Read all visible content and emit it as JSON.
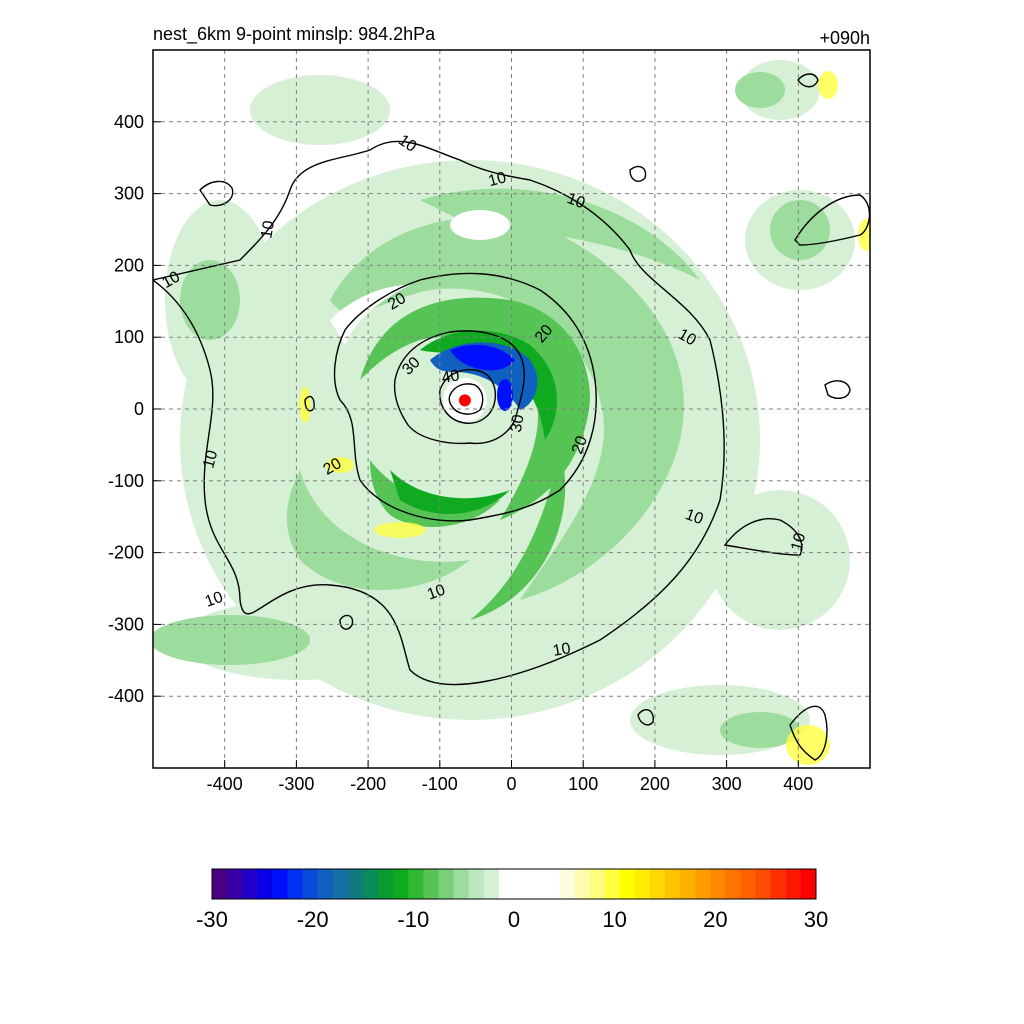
{
  "chart_data": {
    "type": "heatmap",
    "title_left": "nest_6km  9-point minslp: 984.2hPa",
    "title_right": "+090h",
    "xlim": [
      -500,
      500
    ],
    "ylim": [
      -500,
      500
    ],
    "x_ticks": [
      -400,
      -300,
      -200,
      -100,
      0,
      100,
      200,
      300,
      400
    ],
    "y_ticks": [
      400,
      300,
      200,
      100,
      0,
      -100,
      -200,
      -300,
      -400
    ],
    "grid": true,
    "center_marker": {
      "x": -65,
      "y": 12,
      "color": "#ff0000"
    },
    "contour_levels": [
      10,
      20,
      30,
      40
    ],
    "contour_labels": [
      {
        "text": "10",
        "x": -145,
        "y": 370,
        "rot": 35
      },
      {
        "text": "10",
        "x": -20,
        "y": 320,
        "rot": -15
      },
      {
        "text": "10",
        "x": 90,
        "y": 290,
        "rot": 20
      },
      {
        "text": "10",
        "x": -340,
        "y": 250,
        "rot": -80
      },
      {
        "text": "10",
        "x": -475,
        "y": 180,
        "rot": -30
      },
      {
        "text": "20",
        "x": -160,
        "y": 150,
        "rot": -30
      },
      {
        "text": "20",
        "x": 45,
        "y": 105,
        "rot": -50
      },
      {
        "text": "10",
        "x": 245,
        "y": 100,
        "rot": 30
      },
      {
        "text": "30",
        "x": -140,
        "y": 60,
        "rot": -45
      },
      {
        "text": "40",
        "x": -85,
        "y": 45,
        "rot": -10
      },
      {
        "text": "30",
        "x": 8,
        "y": -20,
        "rot": -80
      },
      {
        "text": "20",
        "x": 95,
        "y": -50,
        "rot": -70
      },
      {
        "text": "10",
        "x": -420,
        "y": -70,
        "rot": -75
      },
      {
        "text": "20",
        "x": -250,
        "y": -80,
        "rot": -30
      },
      {
        "text": "10",
        "x": 255,
        "y": -150,
        "rot": 20
      },
      {
        "text": "10",
        "x": 400,
        "y": -185,
        "rot": -75
      },
      {
        "text": "10",
        "x": -105,
        "y": -255,
        "rot": -20
      },
      {
        "text": "10",
        "x": -415,
        "y": -265,
        "rot": -20
      },
      {
        "text": "10",
        "x": 70,
        "y": -335,
        "rot": -10
      }
    ],
    "colorbar": {
      "min": -30,
      "max": 30,
      "tick_values": [
        -30,
        -20,
        -10,
        0,
        10,
        20,
        30
      ],
      "tick_labels": [
        "-30",
        "-20",
        "-10",
        "0",
        "10",
        "20",
        "30"
      ],
      "colors": [
        "#4b0082",
        "#3a00a8",
        "#2300c8",
        "#0a00e8",
        "#0010ff",
        "#0030f0",
        "#0a4ad8",
        "#1060c0",
        "#1570a8",
        "#107a80",
        "#0b8a5a",
        "#0a9a30",
        "#10aa20",
        "#30b830",
        "#55c455",
        "#7ad07a",
        "#9cdc9c",
        "#bce6bc",
        "#d6f0d6",
        "#ffffff",
        "#ffffff",
        "#ffffff",
        "#ffffff",
        "#fdfde0",
        "#fdfdb0",
        "#fdfd80",
        "#ffff40",
        "#ffff00",
        "#ffec00",
        "#ffd800",
        "#ffc400",
        "#ffb000",
        "#ff9c00",
        "#ff8800",
        "#ff7400",
        "#ff6000",
        "#ff4c00",
        "#ff3000",
        "#ff1800",
        "#ff0000"
      ]
    }
  }
}
